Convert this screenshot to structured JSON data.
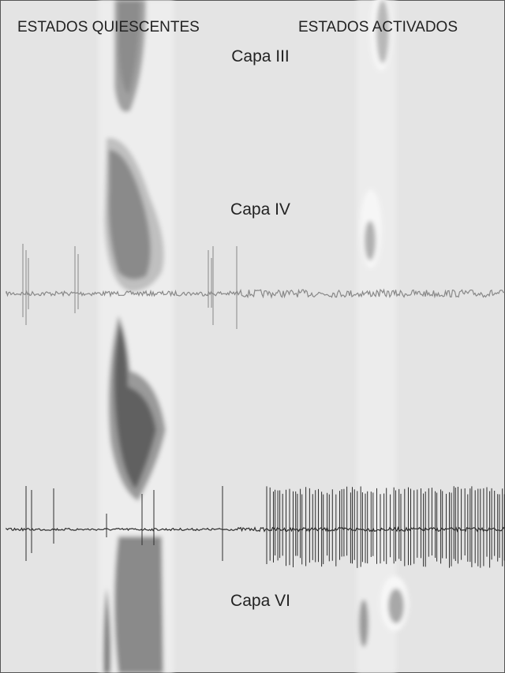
{
  "header": {
    "left": "ESTADOS QUIESCENTES",
    "right": "ESTADOS ACTIVADOS"
  },
  "layers": [
    "Capa III",
    "Capa IV",
    "Capa VI"
  ]
}
